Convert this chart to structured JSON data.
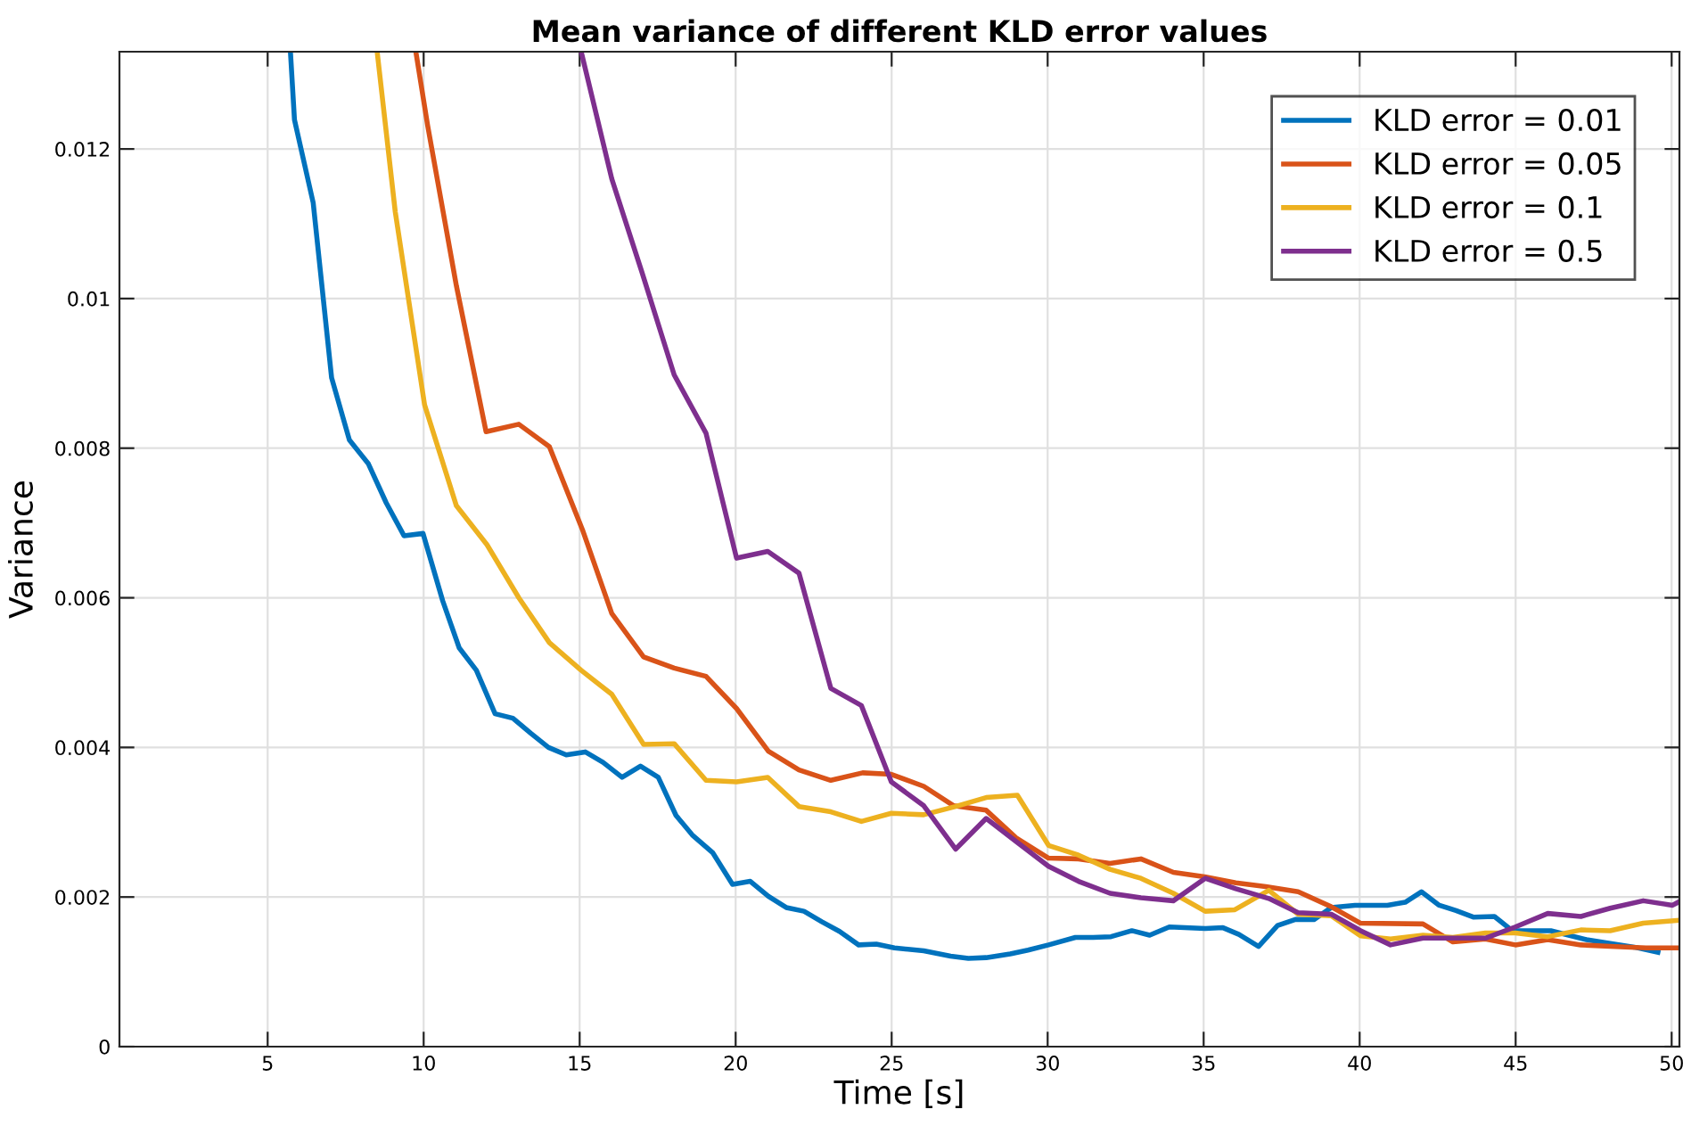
{
  "chart_data": {
    "type": "line",
    "title": "Mean variance of different KLD error values",
    "xlabel": "Time [s]",
    "ylabel": "Variance",
    "xlim": [
      0.25,
      50.25
    ],
    "ylim": [
      0,
      0.0133
    ],
    "xticks": [
      5,
      10,
      15,
      20,
      25,
      30,
      35,
      40,
      45,
      50
    ],
    "yticks": [
      0,
      0.002,
      0.004,
      0.006,
      0.008,
      0.01,
      0.012
    ],
    "grid": true,
    "legend": "top right",
    "line_style": "solid",
    "marker": "none",
    "series": [
      {
        "name": "KLD error = 0.01",
        "color": "#0072bd",
        "x": [
          5.73,
          5.86,
          6.46,
          7.05,
          7.62,
          8.23,
          8.8,
          9.37,
          9.98,
          10.61,
          11.14,
          11.69,
          12.29,
          12.86,
          13.43,
          14.0,
          14.57,
          15.18,
          15.75,
          16.36,
          16.95,
          17.52,
          18.09,
          18.61,
          19.27,
          19.9,
          20.47,
          21.05,
          21.62,
          22.19,
          22.76,
          23.33,
          23.94,
          24.51,
          25.09,
          26.03,
          26.89,
          27.46,
          28.03,
          28.8,
          29.37,
          30.03,
          30.89,
          31.46,
          32.03,
          32.7,
          33.27,
          33.9,
          35.05,
          35.62,
          36.13,
          36.76,
          37.37,
          37.94,
          38.55,
          39.09,
          39.85,
          40.89,
          41.46,
          41.98,
          42.55,
          43.09,
          43.66,
          44.32,
          44.89,
          46.13,
          47.27,
          48.03,
          48.8,
          49.56
        ],
        "values": [
          0.0133,
          0.01239,
          0.01128,
          0.00894,
          0.00811,
          0.00779,
          0.00727,
          0.00683,
          0.00686,
          0.00596,
          0.00533,
          0.00503,
          0.00445,
          0.00439,
          0.00419,
          0.004,
          0.0039,
          0.00394,
          0.0038,
          0.0036,
          0.00375,
          0.0036,
          0.00309,
          0.00283,
          0.00259,
          0.00217,
          0.00221,
          0.00201,
          0.00186,
          0.00181,
          0.00167,
          0.00154,
          0.00136,
          0.00137,
          0.00132,
          0.00128,
          0.00121,
          0.00118,
          0.00119,
          0.00124,
          0.00129,
          0.00136,
          0.00146,
          0.00146,
          0.00147,
          0.00155,
          0.00149,
          0.0016,
          0.00158,
          0.00159,
          0.0015,
          0.00134,
          0.00162,
          0.0017,
          0.0017,
          0.00186,
          0.00189,
          0.00189,
          0.00193,
          0.00207,
          0.00189,
          0.00182,
          0.00173,
          0.00174,
          0.00155,
          0.00155,
          0.00143,
          0.00138,
          0.00133,
          0.00126
        ]
      },
      {
        "name": "KLD error = 0.05",
        "color": "#d95319",
        "x": [
          9.75,
          10.13,
          11.05,
          12.0,
          13.05,
          14.03,
          15.09,
          16.03,
          17.05,
          18.03,
          19.05,
          20.03,
          21.05,
          22.03,
          23.05,
          24.07,
          24.99,
          26.03,
          26.99,
          28.03,
          28.99,
          30.03,
          30.99,
          32.0,
          32.99,
          34.03,
          35.03,
          36.03,
          36.99,
          38.03,
          39.09,
          40.03,
          42.03,
          42.99,
          44.03,
          44.99,
          46.03,
          47.09,
          48.03,
          49.18,
          50.25
        ],
        "values": [
          0.0133,
          0.01231,
          0.01017,
          0.00822,
          0.00832,
          0.00802,
          0.00691,
          0.00579,
          0.00521,
          0.00506,
          0.00495,
          0.00452,
          0.00395,
          0.0037,
          0.00356,
          0.00366,
          0.00364,
          0.00348,
          0.00322,
          0.00316,
          0.00279,
          0.00252,
          0.00251,
          0.00245,
          0.00251,
          0.00233,
          0.00227,
          0.00219,
          0.00214,
          0.00207,
          0.00187,
          0.00165,
          0.00164,
          0.0014,
          0.00144,
          0.00136,
          0.00143,
          0.00136,
          0.00134,
          0.00132,
          0.00132
        ]
      },
      {
        "name": "KLD error = 0.1",
        "color": "#edb120",
        "x": [
          8.51,
          9.09,
          10.03,
          11.05,
          12.03,
          13.05,
          14.03,
          15.05,
          16.03,
          17.05,
          18.03,
          19.05,
          20.03,
          21.03,
          22.03,
          23.05,
          24.03,
          24.99,
          26.03,
          27.05,
          28.03,
          29.03,
          30.03,
          30.99,
          32.0,
          32.99,
          34.03,
          35.05,
          36.0,
          37.09,
          38.03,
          39.09,
          40.03,
          40.99,
          42.03,
          42.99,
          44.03,
          44.99,
          46.03,
          47.09,
          48.03,
          49.09,
          50.25
        ],
        "values": [
          0.0133,
          0.01116,
          0.00858,
          0.00723,
          0.00671,
          0.006,
          0.0054,
          0.00503,
          0.00471,
          0.00404,
          0.00405,
          0.00356,
          0.00354,
          0.0036,
          0.00321,
          0.00314,
          0.00301,
          0.00312,
          0.0031,
          0.00321,
          0.00333,
          0.00336,
          0.00269,
          0.00256,
          0.00237,
          0.00225,
          0.00205,
          0.00181,
          0.00183,
          0.00209,
          0.00177,
          0.00175,
          0.00148,
          0.00144,
          0.00149,
          0.00146,
          0.00152,
          0.00152,
          0.00147,
          0.00156,
          0.00155,
          0.00165,
          0.00169
        ]
      },
      {
        "name": "KLD error = 0.5",
        "color": "#7e2f8e",
        "x": [
          15.05,
          16.03,
          16.99,
          18.03,
          19.05,
          20.03,
          21.03,
          22.03,
          23.05,
          24.03,
          24.99,
          26.03,
          27.05,
          28.03,
          29.03,
          30.03,
          30.99,
          32.0,
          32.99,
          34.03,
          35.05,
          36.03,
          37.09,
          38.03,
          39.09,
          40.03,
          40.99,
          42.03,
          44.03,
          44.99,
          46.03,
          47.09,
          48.03,
          49.09,
          50.03,
          50.25
        ],
        "values": [
          0.0133,
          0.0116,
          0.01036,
          0.00898,
          0.0082,
          0.00653,
          0.00662,
          0.00633,
          0.00479,
          0.00456,
          0.00354,
          0.00322,
          0.00264,
          0.00305,
          0.00273,
          0.00241,
          0.00221,
          0.00205,
          0.00199,
          0.00195,
          0.00225,
          0.00211,
          0.00198,
          0.00179,
          0.00177,
          0.00155,
          0.00136,
          0.00145,
          0.00145,
          0.0016,
          0.00178,
          0.00174,
          0.00185,
          0.00195,
          0.00189,
          0.00194
        ]
      }
    ]
  }
}
